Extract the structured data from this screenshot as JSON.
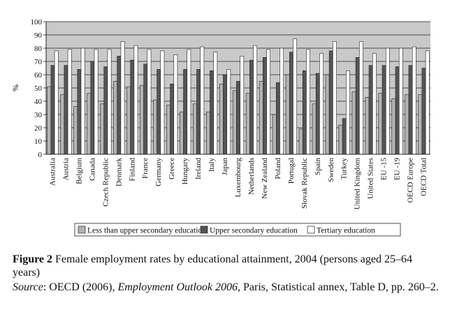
{
  "chart_data": {
    "type": "bar",
    "ylabel": "%",
    "ylim": [
      0,
      100
    ],
    "yticks": [
      0,
      10,
      20,
      30,
      40,
      50,
      60,
      70,
      80,
      90,
      100
    ],
    "grid": true,
    "legend_position": "bottom",
    "categories": [
      "Australia",
      "Austria",
      "Belgium",
      "Canada",
      "Czech Republic",
      "Denmark",
      "Finland",
      "France",
      "Germany",
      "Greece",
      "Hungary",
      "Ireland",
      "Italy",
      "Japan",
      "Luxembourg",
      "Netherlands",
      "New Zealand",
      "Poland",
      "Portugal",
      "Slovak Republic",
      "Spain",
      "Sweden",
      "Turkey",
      "United Kingdom",
      "United States",
      "EU -15",
      "EU -19",
      "OECD Europe",
      "OECD Total"
    ],
    "series": [
      {
        "name": "Less than upper secondary education",
        "color": "#b4b4b4",
        "values": [
          51,
          45,
          36,
          46,
          38,
          55,
          51,
          52,
          41,
          37,
          32,
          38,
          32,
          53,
          48,
          46,
          55,
          30,
          60,
          19,
          38,
          60,
          22,
          47,
          43,
          46,
          42,
          45,
          45
        ]
      },
      {
        "name": "Upper secondary education",
        "color": "#555555",
        "values": [
          67,
          67,
          64,
          70,
          66,
          74,
          71,
          68,
          64,
          53,
          64,
          64,
          63,
          60,
          55,
          71,
          73,
          54,
          77,
          63,
          61,
          78,
          27,
          73,
          67,
          67,
          66,
          67,
          65
        ]
      },
      {
        "name": "Tertiary education",
        "color": "#ffffff",
        "values": [
          78,
          79,
          80,
          79,
          79,
          85,
          82,
          79,
          78,
          75,
          79,
          81,
          77,
          64,
          74,
          82,
          79,
          80,
          87,
          79,
          76,
          85,
          63,
          85,
          76,
          80,
          80,
          81,
          78
        ]
      }
    ]
  },
  "caption": {
    "figure_label": "Figure 2",
    "title_text": "Female employment rates by educational attainment, 2004 (persons aged 25–64 years)",
    "source_label": "Source",
    "source_prefix": ": OECD (2006), ",
    "source_publication": "Employment Outlook 2006",
    "source_suffix": ", Paris, Statistical annex, Table D, pp. 260–2."
  }
}
